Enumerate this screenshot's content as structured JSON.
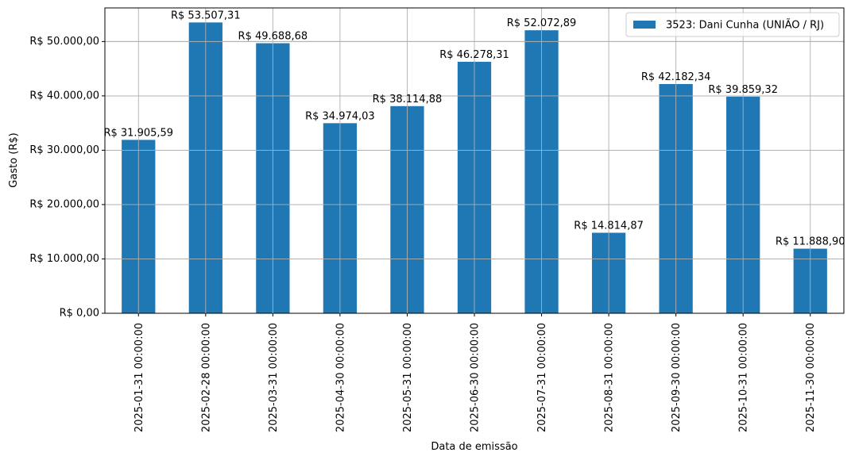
{
  "chart_data": {
    "type": "bar",
    "title": "",
    "xlabel": "Data de emissão",
    "ylabel": "Gasto (R$)",
    "categories": [
      "2025-01-31 00:00:00",
      "2025-02-28 00:00:00",
      "2025-03-31 00:00:00",
      "2025-04-30 00:00:00",
      "2025-05-31 00:00:00",
      "2025-06-30 00:00:00",
      "2025-07-31 00:00:00",
      "2025-08-31 00:00:00",
      "2025-09-30 00:00:00",
      "2025-10-31 00:00:00",
      "2025-11-30 00:00:00"
    ],
    "series": [
      {
        "name": "3523: Dani Cunha (UNIÃO / RJ)",
        "color": "#1f77b4",
        "values": [
          31905.59,
          53507.31,
          49688.68,
          34974.03,
          38114.88,
          46278.31,
          52072.89,
          14814.87,
          42182.34,
          39859.32,
          11888.9
        ],
        "labels": [
          "R$ 31.905,59",
          "R$ 53.507,31",
          "R$ 49.688,68",
          "R$ 34.974,03",
          "R$ 38.114,88",
          "R$ 46.278,31",
          "R$ 52.072,89",
          "R$ 14.814,87",
          "R$ 42.182,34",
          "R$ 39.859,32",
          "R$ 11.888,90"
        ]
      }
    ],
    "yticks": [
      0,
      10000,
      20000,
      30000,
      40000,
      50000
    ],
    "ytick_labels": [
      "R$ 0,00",
      "R$ 10.000,00",
      "R$ 20.000,00",
      "R$ 30.000,00",
      "R$ 40.000,00",
      "R$ 50.000,00"
    ],
    "ylim": [
      0,
      56182.68
    ],
    "grid": true,
    "legend_position": "upper right",
    "xtick_rotation": 90
  }
}
